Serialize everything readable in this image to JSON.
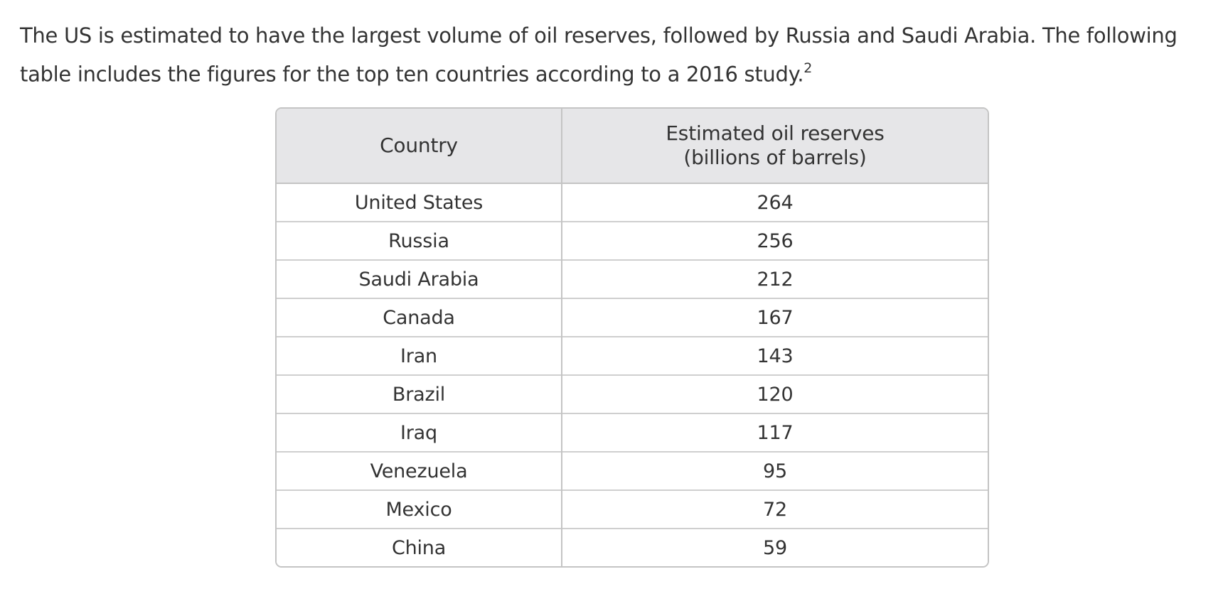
{
  "intro": {
    "text": "The US is estimated to have the largest volume of oil reserves, followed by Russia and Saudi Arabia. The following table includes the figures for the top ten countries according to a 2016 study.",
    "footnote": "2"
  },
  "table": {
    "headers": {
      "country": "Country",
      "reserves_line1": "Estimated oil reserves",
      "reserves_line2": "(billions of barrels)"
    },
    "rows": [
      {
        "country": "United States",
        "reserves": "264"
      },
      {
        "country": "Russia",
        "reserves": "256"
      },
      {
        "country": "Saudi Arabia",
        "reserves": "212"
      },
      {
        "country": "Canada",
        "reserves": "167"
      },
      {
        "country": "Iran",
        "reserves": "143"
      },
      {
        "country": "Brazil",
        "reserves": "120"
      },
      {
        "country": "Iraq",
        "reserves": "117"
      },
      {
        "country": "Venezuela",
        "reserves": "95"
      },
      {
        "country": "Mexico",
        "reserves": "72"
      },
      {
        "country": "China",
        "reserves": "59"
      }
    ]
  }
}
